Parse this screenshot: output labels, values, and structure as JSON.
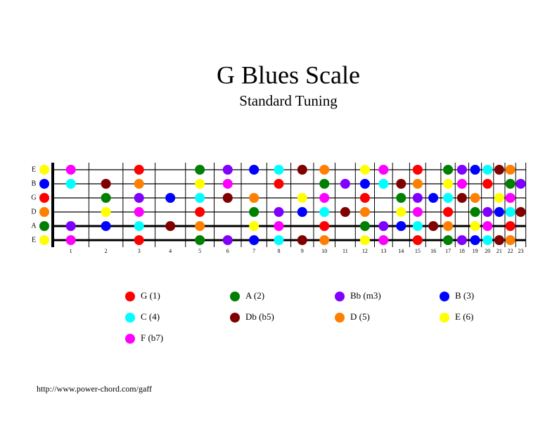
{
  "title": "G Blues Scale",
  "subtitle": "Standard Tuning",
  "legend": [
    {
      "label": "G (1)",
      "color": "#ff0000"
    },
    {
      "label": "A (2)",
      "color": "#008000"
    },
    {
      "label": "Bb (m3)",
      "color": "#8000ff"
    },
    {
      "label": "B (3)",
      "color": "#0000ff"
    },
    {
      "label": "C (4)",
      "color": "#00ffff"
    },
    {
      "label": "Db (b5)",
      "color": "#800000"
    },
    {
      "label": "D (5)",
      "color": "#ff8000"
    },
    {
      "label": "E (6)",
      "color": "#ffff00"
    },
    {
      "label": "F (b7)",
      "color": "#ff00ff"
    }
  ],
  "frets": [
    1,
    2,
    3,
    4,
    5,
    6,
    7,
    8,
    9,
    10,
    11,
    12,
    13,
    14,
    15,
    16,
    17,
    18,
    19,
    20,
    21,
    22,
    23
  ],
  "strings": [
    {
      "name": "E",
      "notes": [
        7,
        8,
        null,
        0,
        null,
        1,
        2,
        3,
        4,
        5,
        6,
        null,
        7,
        8,
        null,
        0,
        null,
        1,
        2,
        3,
        4,
        5,
        6,
        null
      ]
    },
    {
      "name": "B",
      "notes": [
        3,
        4,
        5,
        6,
        null,
        7,
        8,
        null,
        0,
        null,
        1,
        2,
        3,
        4,
        5,
        6,
        null,
        7,
        8,
        null,
        0,
        null,
        1,
        2
      ]
    },
    {
      "name": "G",
      "notes": [
        0,
        null,
        1,
        2,
        3,
        4,
        5,
        6,
        null,
        7,
        8,
        null,
        0,
        null,
        1,
        2,
        3,
        4,
        5,
        6,
        null,
        7,
        8,
        null
      ]
    },
    {
      "name": "D",
      "notes": [
        6,
        null,
        7,
        8,
        null,
        0,
        null,
        1,
        2,
        3,
        4,
        5,
        6,
        null,
        7,
        8,
        null,
        0,
        null,
        1,
        2,
        3,
        4,
        5
      ]
    },
    {
      "name": "A",
      "notes": [
        1,
        2,
        3,
        4,
        5,
        6,
        null,
        7,
        8,
        null,
        0,
        null,
        1,
        2,
        3,
        4,
        5,
        6,
        null,
        7,
        8,
        null,
        0,
        null
      ]
    },
    {
      "name": "E",
      "notes": [
        7,
        8,
        null,
        0,
        null,
        1,
        2,
        3,
        4,
        5,
        6,
        null,
        7,
        8,
        null,
        0,
        null,
        1,
        2,
        3,
        4,
        5,
        6,
        null
      ]
    }
  ],
  "footer": "http://www.power-chord.com/gaff"
}
